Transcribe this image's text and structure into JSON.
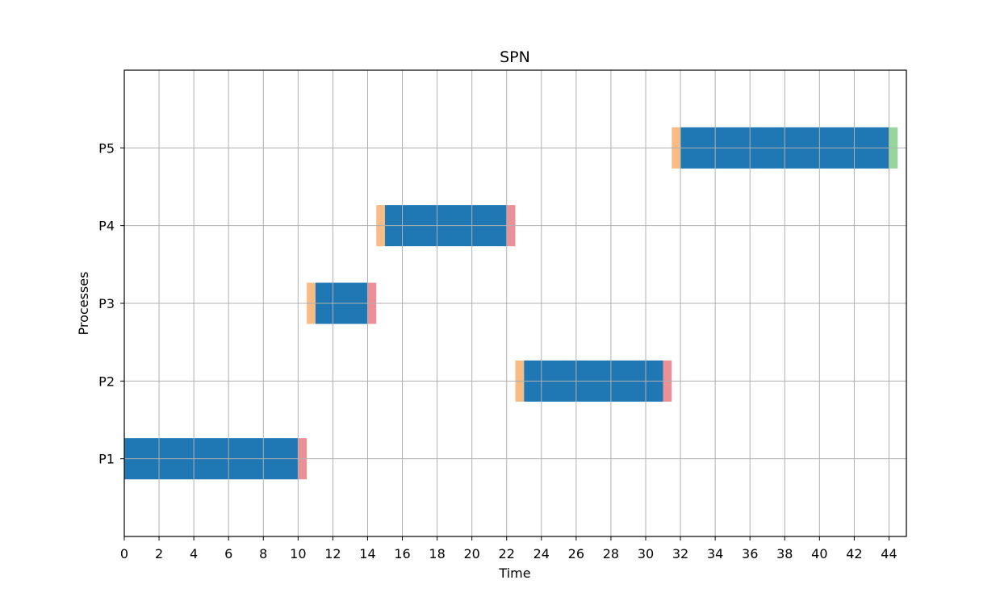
{
  "chart_data": {
    "type": "gantt",
    "title": "SPN",
    "xlabel": "Time",
    "ylabel": "Processes",
    "xlim": [
      0,
      45
    ],
    "ylim": [
      0,
      6
    ],
    "grid": true,
    "x_ticks": [
      0,
      2,
      4,
      6,
      8,
      10,
      12,
      14,
      16,
      18,
      20,
      22,
      24,
      26,
      28,
      30,
      32,
      34,
      36,
      38,
      40,
      42,
      44
    ],
    "y_ticks": [
      {
        "value": 1,
        "label": "P1"
      },
      {
        "value": 2,
        "label": "P2"
      },
      {
        "value": 3,
        "label": "P3"
      },
      {
        "value": 4,
        "label": "P4"
      },
      {
        "value": 5,
        "label": "P5"
      }
    ],
    "colors": {
      "run": "#1f77b4",
      "switch_in": "#f8bb85",
      "switch_out": "#ea9097",
      "final": "#98d59a"
    },
    "segments": [
      {
        "process": "P1",
        "start": 0,
        "end": 10,
        "kind": "run"
      },
      {
        "process": "P1",
        "start": 10,
        "end": 10.5,
        "kind": "switch_out"
      },
      {
        "process": "P3",
        "start": 10.5,
        "end": 11,
        "kind": "switch_in"
      },
      {
        "process": "P3",
        "start": 11,
        "end": 14,
        "kind": "run"
      },
      {
        "process": "P3",
        "start": 14,
        "end": 14.5,
        "kind": "switch_out"
      },
      {
        "process": "P4",
        "start": 14.5,
        "end": 15,
        "kind": "switch_in"
      },
      {
        "process": "P4",
        "start": 15,
        "end": 22,
        "kind": "run"
      },
      {
        "process": "P4",
        "start": 22,
        "end": 22.5,
        "kind": "switch_out"
      },
      {
        "process": "P2",
        "start": 22.5,
        "end": 23,
        "kind": "switch_in"
      },
      {
        "process": "P2",
        "start": 23,
        "end": 31,
        "kind": "run"
      },
      {
        "process": "P2",
        "start": 31,
        "end": 31.5,
        "kind": "switch_out"
      },
      {
        "process": "P5",
        "start": 31.5,
        "end": 32,
        "kind": "switch_in"
      },
      {
        "process": "P5",
        "start": 32,
        "end": 44,
        "kind": "run"
      },
      {
        "process": "P5",
        "start": 44,
        "end": 44.5,
        "kind": "final"
      }
    ]
  }
}
